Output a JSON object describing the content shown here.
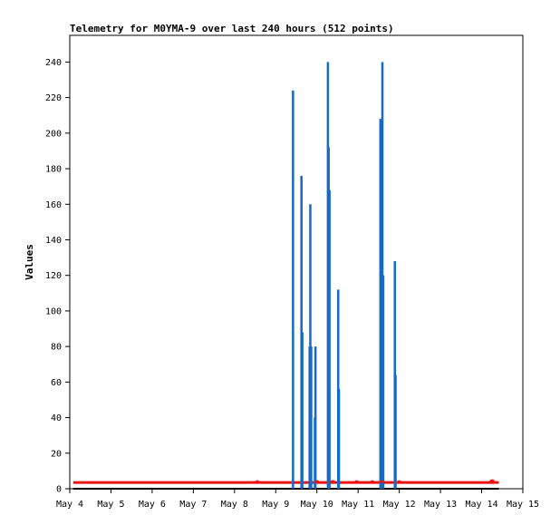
{
  "chart_data": {
    "type": "bar",
    "title": "Telemetry for M0YMA-9 over last 240 hours (512 points)",
    "ylabel": "Values",
    "xlabel": "",
    "x_ticks": [
      "May 4",
      "May 5",
      "May 6",
      "May 7",
      "May 8",
      "May 9",
      "May 10",
      "May 11",
      "May 12",
      "May 13",
      "May 14",
      "May 15"
    ],
    "xlim": [
      "May 4",
      "May 15"
    ],
    "y_ticks": [
      0,
      20,
      40,
      60,
      80,
      100,
      120,
      140,
      160,
      180,
      200,
      220,
      240
    ],
    "ylim": [
      0,
      255
    ],
    "grid": false,
    "series": [
      {
        "color": "#1569c7",
        "type": "bar",
        "points": [
          {
            "x": "May 9 10:05",
            "y": 224
          },
          {
            "x": "May 9 15:00",
            "y": 176
          },
          {
            "x": "May 9 15:30",
            "y": 88
          },
          {
            "x": "May 9 19:45",
            "y": 80
          },
          {
            "x": "May 9 20:10",
            "y": 160
          },
          {
            "x": "May 9 20:40",
            "y": 80
          },
          {
            "x": "May 9 22:50",
            "y": 40
          },
          {
            "x": "May 9 23:10",
            "y": 80
          },
          {
            "x": "May 10 06:25",
            "y": 240
          },
          {
            "x": "May 10 06:50",
            "y": 192
          },
          {
            "x": "May 10 07:20",
            "y": 168
          },
          {
            "x": "May 10 12:25",
            "y": 112
          },
          {
            "x": "May 10 12:50",
            "y": 56
          },
          {
            "x": "May 11 13:00",
            "y": 208
          },
          {
            "x": "May 11 14:10",
            "y": 240
          },
          {
            "x": "May 11 14:40",
            "y": 120
          },
          {
            "x": "May 11 21:25",
            "y": 128
          },
          {
            "x": "May 11 21:50",
            "y": 64
          }
        ]
      },
      {
        "color": "#ee1111",
        "type": "line",
        "baseline": 3.5,
        "points": [
          {
            "x": "May 8 13:15",
            "y": 4.5
          },
          {
            "x": "May 10 00:10",
            "y": 4.5
          },
          {
            "x": "May 10 09:00",
            "y": 4.5
          },
          {
            "x": "May 10 09:30",
            "y": 4.5
          },
          {
            "x": "May 10 23:10",
            "y": 4.5
          },
          {
            "x": "May 11 08:15",
            "y": 4.5
          },
          {
            "x": "May 11 13:30",
            "y": 4.5
          },
          {
            "x": "May 12 00:00",
            "y": 4.5
          },
          {
            "x": "May 14 05:50",
            "y": 5
          },
          {
            "x": "May 14 06:20",
            "y": 5
          }
        ]
      },
      {
        "color": "#000000",
        "type": "line",
        "baseline": 0
      }
    ]
  }
}
